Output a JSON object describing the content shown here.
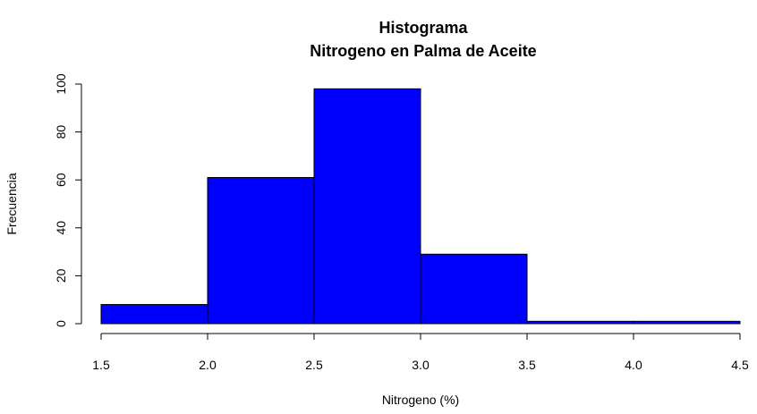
{
  "chart_data": {
    "type": "bar",
    "subtype": "histogram",
    "title": "Histograma",
    "subtitle": "Nitrogeno en Palma de Aceite",
    "xlabel": "Nitrogeno (%)",
    "ylabel": "Frecuencia",
    "bins": [
      {
        "start": 1.5,
        "end": 2.0,
        "count": 8
      },
      {
        "start": 2.0,
        "end": 2.5,
        "count": 61
      },
      {
        "start": 2.5,
        "end": 3.0,
        "count": 98
      },
      {
        "start": 3.0,
        "end": 3.5,
        "count": 29
      },
      {
        "start": 3.5,
        "end": 4.0,
        "count": 1
      },
      {
        "start": 4.0,
        "end": 4.5,
        "count": 1
      }
    ],
    "xlim": [
      1.5,
      4.5
    ],
    "ylim": [
      0,
      100
    ],
    "x_ticks": [
      "1.5",
      "2.0",
      "2.5",
      "3.0",
      "3.5",
      "4.0",
      "4.5"
    ],
    "y_ticks": [
      "0",
      "20",
      "40",
      "60",
      "80",
      "100"
    ],
    "bar_color": "#0000ff",
    "bar_border_color": "#000000",
    "grid": false,
    "legend": "none"
  }
}
